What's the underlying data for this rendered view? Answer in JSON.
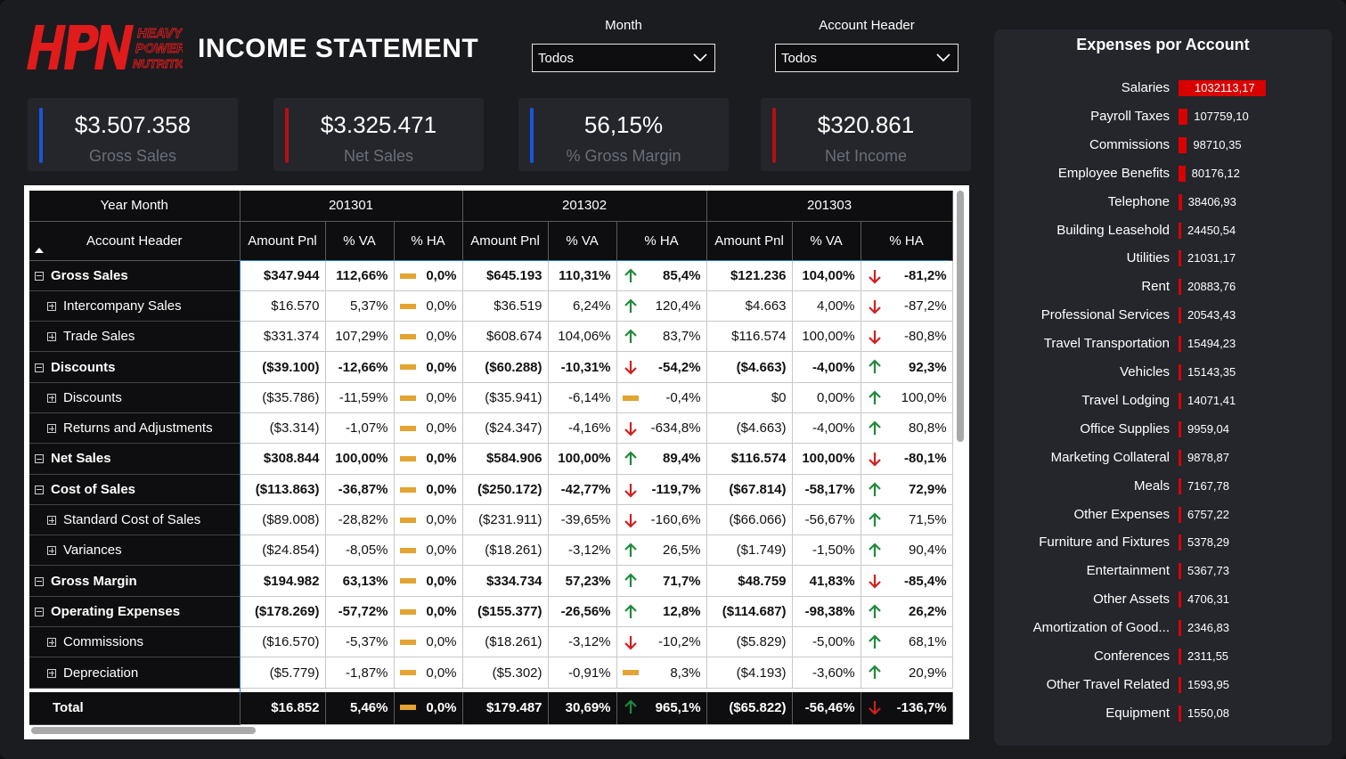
{
  "header": {
    "logo_text": "HPN HEAVY POWER NUTRITION",
    "title": "INCOME STATEMENT"
  },
  "slicers": [
    {
      "label": "Month",
      "value": "Todos"
    },
    {
      "label": "Account Header",
      "value": "Todos"
    }
  ],
  "kpis": [
    {
      "value": "$3.507.358",
      "label": "Gross Sales",
      "accent": "#1a56db"
    },
    {
      "value": "$3.325.471",
      "label": "Net Sales",
      "accent": "#b80f0f"
    },
    {
      "value": "56,15%",
      "label": "% Gross Margin",
      "accent": "#1a56db"
    },
    {
      "value": "$320.861",
      "label": "Net Income",
      "accent": "#b80f0f"
    }
  ],
  "matrix": {
    "col_group_label": "Year Month",
    "row_header_label": "Account Header",
    "periods": [
      "201301",
      "201302",
      "201303"
    ],
    "measures": [
      "Amount Pnl",
      "% VA",
      "% HA"
    ],
    "rows": [
      {
        "label": "Gross Sales",
        "level": 0,
        "cells": [
          [
            "$347.944",
            "112,66%",
            "flat",
            "0,0%"
          ],
          [
            "$645.193",
            "110,31%",
            "up",
            "85,4%"
          ],
          [
            "$121.236",
            "104,00%",
            "down",
            "-81,2%"
          ]
        ]
      },
      {
        "label": "Intercompany Sales",
        "level": 1,
        "cells": [
          [
            "$16.570",
            "5,37%",
            "flat",
            "0,0%"
          ],
          [
            "$36.519",
            "6,24%",
            "up",
            "120,4%"
          ],
          [
            "$4.663",
            "4,00%",
            "down",
            "-87,2%"
          ]
        ]
      },
      {
        "label": "Trade Sales",
        "level": 1,
        "cells": [
          [
            "$331.374",
            "107,29%",
            "flat",
            "0,0%"
          ],
          [
            "$608.674",
            "104,06%",
            "up",
            "83,7%"
          ],
          [
            "$116.574",
            "100,00%",
            "down",
            "-80,8%"
          ]
        ]
      },
      {
        "label": "Discounts",
        "level": 0,
        "cells": [
          [
            "($39.100)",
            "-12,66%",
            "flat",
            "0,0%"
          ],
          [
            "($60.288)",
            "-10,31%",
            "down",
            "-54,2%"
          ],
          [
            "($4.663)",
            "-4,00%",
            "up",
            "92,3%"
          ]
        ]
      },
      {
        "label": "Discounts",
        "level": 1,
        "cells": [
          [
            "($35.786)",
            "-11,59%",
            "flat",
            "0,0%"
          ],
          [
            "($35.941)",
            "-6,14%",
            "flat",
            "-0,4%"
          ],
          [
            "$0",
            "0,00%",
            "up",
            "100,0%"
          ]
        ]
      },
      {
        "label": "Returns and Adjustments",
        "level": 1,
        "cells": [
          [
            "($3.314)",
            "-1,07%",
            "flat",
            "0,0%"
          ],
          [
            "($24.347)",
            "-4,16%",
            "down",
            "-634,8%"
          ],
          [
            "($4.663)",
            "-4,00%",
            "up",
            "80,8%"
          ]
        ]
      },
      {
        "label": "Net Sales",
        "level": 0,
        "cells": [
          [
            "$308.844",
            "100,00%",
            "flat",
            "0,0%"
          ],
          [
            "$584.906",
            "100,00%",
            "up",
            "89,4%"
          ],
          [
            "$116.574",
            "100,00%",
            "down",
            "-80,1%"
          ]
        ]
      },
      {
        "label": "Cost of Sales",
        "level": 0,
        "cells": [
          [
            "($113.863)",
            "-36,87%",
            "flat",
            "0,0%"
          ],
          [
            "($250.172)",
            "-42,77%",
            "down",
            "-119,7%"
          ],
          [
            "($67.814)",
            "-58,17%",
            "up",
            "72,9%"
          ]
        ]
      },
      {
        "label": "Standard Cost of Sales",
        "level": 1,
        "cells": [
          [
            "($89.008)",
            "-28,82%",
            "flat",
            "0,0%"
          ],
          [
            "($231.911)",
            "-39,65%",
            "down",
            "-160,6%"
          ],
          [
            "($66.066)",
            "-56,67%",
            "up",
            "71,5%"
          ]
        ]
      },
      {
        "label": "Variances",
        "level": 1,
        "cells": [
          [
            "($24.854)",
            "-8,05%",
            "flat",
            "0,0%"
          ],
          [
            "($18.261)",
            "-3,12%",
            "up",
            "26,5%"
          ],
          [
            "($1.749)",
            "-1,50%",
            "up",
            "90,4%"
          ]
        ]
      },
      {
        "label": "Gross Margin",
        "level": 0,
        "cells": [
          [
            "$194.982",
            "63,13%",
            "flat",
            "0,0%"
          ],
          [
            "$334.734",
            "57,23%",
            "up",
            "71,7%"
          ],
          [
            "$48.759",
            "41,83%",
            "down",
            "-85,4%"
          ]
        ]
      },
      {
        "label": "Operating Expenses",
        "level": 0,
        "cells": [
          [
            "($178.269)",
            "-57,72%",
            "flat",
            "0,0%"
          ],
          [
            "($155.377)",
            "-26,56%",
            "up",
            "12,8%"
          ],
          [
            "($114.687)",
            "-98,38%",
            "up",
            "26,2%"
          ]
        ]
      },
      {
        "label": "Commissions",
        "level": 1,
        "cells": [
          [
            "($16.570)",
            "-5,37%",
            "flat",
            "0,0%"
          ],
          [
            "($18.261)",
            "-3,12%",
            "down",
            "-10,2%"
          ],
          [
            "($5.829)",
            "-5,00%",
            "up",
            "68,1%"
          ]
        ]
      },
      {
        "label": "Depreciation",
        "level": 1,
        "cells": [
          [
            "($5.779)",
            "-1,87%",
            "flat",
            "0,0%"
          ],
          [
            "($5.302)",
            "-0,91%",
            "flat",
            "8,3%"
          ],
          [
            "($4.193)",
            "-3,60%",
            "up",
            "20,9%"
          ]
        ]
      }
    ],
    "total": {
      "label": "Total",
      "cells": [
        [
          "$16.852",
          "5,46%",
          "flat",
          "0,0%"
        ],
        [
          "$179.487",
          "30,69%",
          "up",
          "965,1%"
        ],
        [
          "($65.822)",
          "-56,46%",
          "down",
          "-136,7%"
        ]
      ]
    }
  },
  "expenses": {
    "title": "Expenses por Account",
    "bar_color": "#d90000",
    "chart_data": {
      "type": "bar",
      "orientation": "horizontal",
      "title": "Expenses por Account",
      "categories": [
        "Salaries",
        "Payroll Taxes",
        "Commissions",
        "Employee Benefits",
        "Telephone",
        "Building Leasehold",
        "Utilities",
        "Rent",
        "Professional Services",
        "Travel Transportation",
        "Vehicles",
        "Travel Lodging",
        "Office Supplies",
        "Marketing Collateral",
        "Meals",
        "Other Expenses",
        "Furniture and Fixtures",
        "Entertainment",
        "Other Assets",
        "Amortization of Good...",
        "Conferences",
        "Other Travel Related",
        "Equipment"
      ],
      "values": [
        1032113.17,
        107759.1,
        98710.35,
        80176.12,
        38406.93,
        24450.54,
        21031.17,
        20883.76,
        20543.43,
        15494.23,
        15143.35,
        14071.41,
        9959.04,
        9878.87,
        7167.78,
        6757.22,
        5378.29,
        5367.73,
        4706.31,
        2346.83,
        2311.55,
        1593.95,
        1550.08
      ],
      "labels": [
        "1032113,17",
        "107759,10",
        "98710,35",
        "80176,12",
        "38406,93",
        "24450,54",
        "21031,17",
        "20883,76",
        "20543,43",
        "15494,23",
        "15143,35",
        "14071,41",
        "9959,04",
        "9878,87",
        "7167,78",
        "6757,22",
        "5378,29",
        "5367,73",
        "4706,31",
        "2346,83",
        "2311,55",
        "1593,95",
        "1550,08"
      ]
    }
  }
}
